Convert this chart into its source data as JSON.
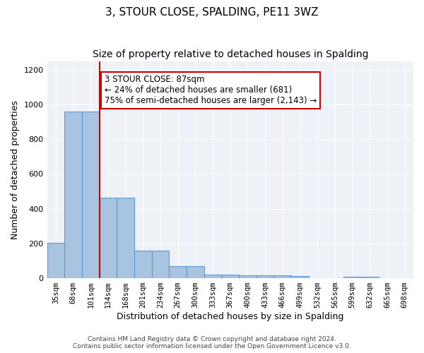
{
  "title": "3, STOUR CLOSE, SPALDING, PE11 3WZ",
  "subtitle": "Size of property relative to detached houses in Spalding",
  "xlabel": "Distribution of detached houses by size in Spalding",
  "ylabel": "Number of detached properties",
  "categories": [
    "35sqm",
    "68sqm",
    "101sqm",
    "134sqm",
    "168sqm",
    "201sqm",
    "234sqm",
    "267sqm",
    "300sqm",
    "333sqm",
    "367sqm",
    "400sqm",
    "433sqm",
    "466sqm",
    "499sqm",
    "532sqm",
    "565sqm",
    "599sqm",
    "632sqm",
    "665sqm",
    "698sqm"
  ],
  "values": [
    205,
    960,
    960,
    465,
    465,
    160,
    160,
    68,
    68,
    22,
    22,
    18,
    18,
    18,
    12,
    0,
    0,
    10,
    10,
    0,
    0
  ],
  "bar_color": "#a8c4e0",
  "bar_edge_color": "#5b9bd5",
  "vline_x": 2.5,
  "vline_color": "#cc0000",
  "annotation_text": "3 STOUR CLOSE: 87sqm\n← 24% of detached houses are smaller (681)\n75% of semi-detached houses are larger (2,143) →",
  "annotation_box_color": "#ffffff",
  "annotation_box_edge": "#cc0000",
  "ylim": [
    0,
    1250
  ],
  "yticks": [
    0,
    200,
    400,
    600,
    800,
    1000,
    1200
  ],
  "bg_color": "#eef2f8",
  "footer": "Contains HM Land Registry data © Crown copyright and database right 2024.\nContains public sector information licensed under the Open Government Licence v3.0.",
  "title_fontsize": 11,
  "subtitle_fontsize": 10,
  "label_fontsize": 9,
  "tick_fontsize": 7.5
}
